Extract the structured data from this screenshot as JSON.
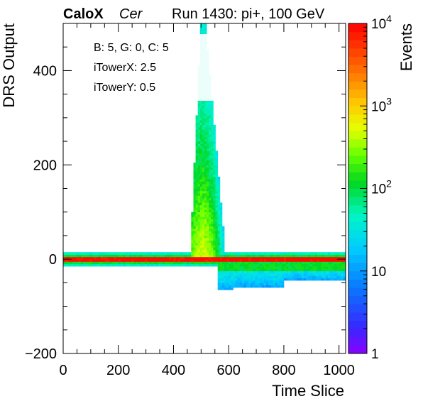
{
  "header": {
    "experiment": "CaloX",
    "channel": "Cer",
    "run": "Run 1430: pi+, 100 GeV"
  },
  "info": {
    "line1": "B: 5, G: 0, C: 5",
    "line2": "iTowerX: 2.5",
    "line3": "iTowerY: 0.5"
  },
  "chart_data": {
    "type": "heatmap",
    "xlabel": "Time Slice",
    "ylabel": "DRS Output",
    "zlabel": "Events",
    "xlim": [
      0,
      1024
    ],
    "ylim": [
      -200,
      500
    ],
    "zlim": [
      1,
      10000
    ],
    "zscale": "log",
    "x_ticks": [
      "0",
      "200",
      "400",
      "600",
      "800",
      "1000"
    ],
    "y_ticks": [
      "−200",
      "0",
      "200",
      "400"
    ],
    "z_ticks": [
      {
        "base": "1",
        "exp": ""
      },
      {
        "base": "10",
        "exp": ""
      },
      {
        "base": "10",
        "exp": "2"
      },
      {
        "base": "10",
        "exp": "3"
      },
      {
        "base": "10",
        "exp": "4"
      }
    ],
    "features": {
      "baseline_band": {
        "x": [
          0,
          1024
        ],
        "y_center": 0,
        "y_halfwidth": 15,
        "peak_events": 10000
      },
      "pulse": {
        "x_start": 460,
        "x_peak": 505,
        "x_end": 590,
        "y_max": 500,
        "tail_events": 20
      },
      "undershoot": {
        "x": [
          560,
          1024
        ],
        "y_min": -85,
        "events": 10
      }
    }
  }
}
